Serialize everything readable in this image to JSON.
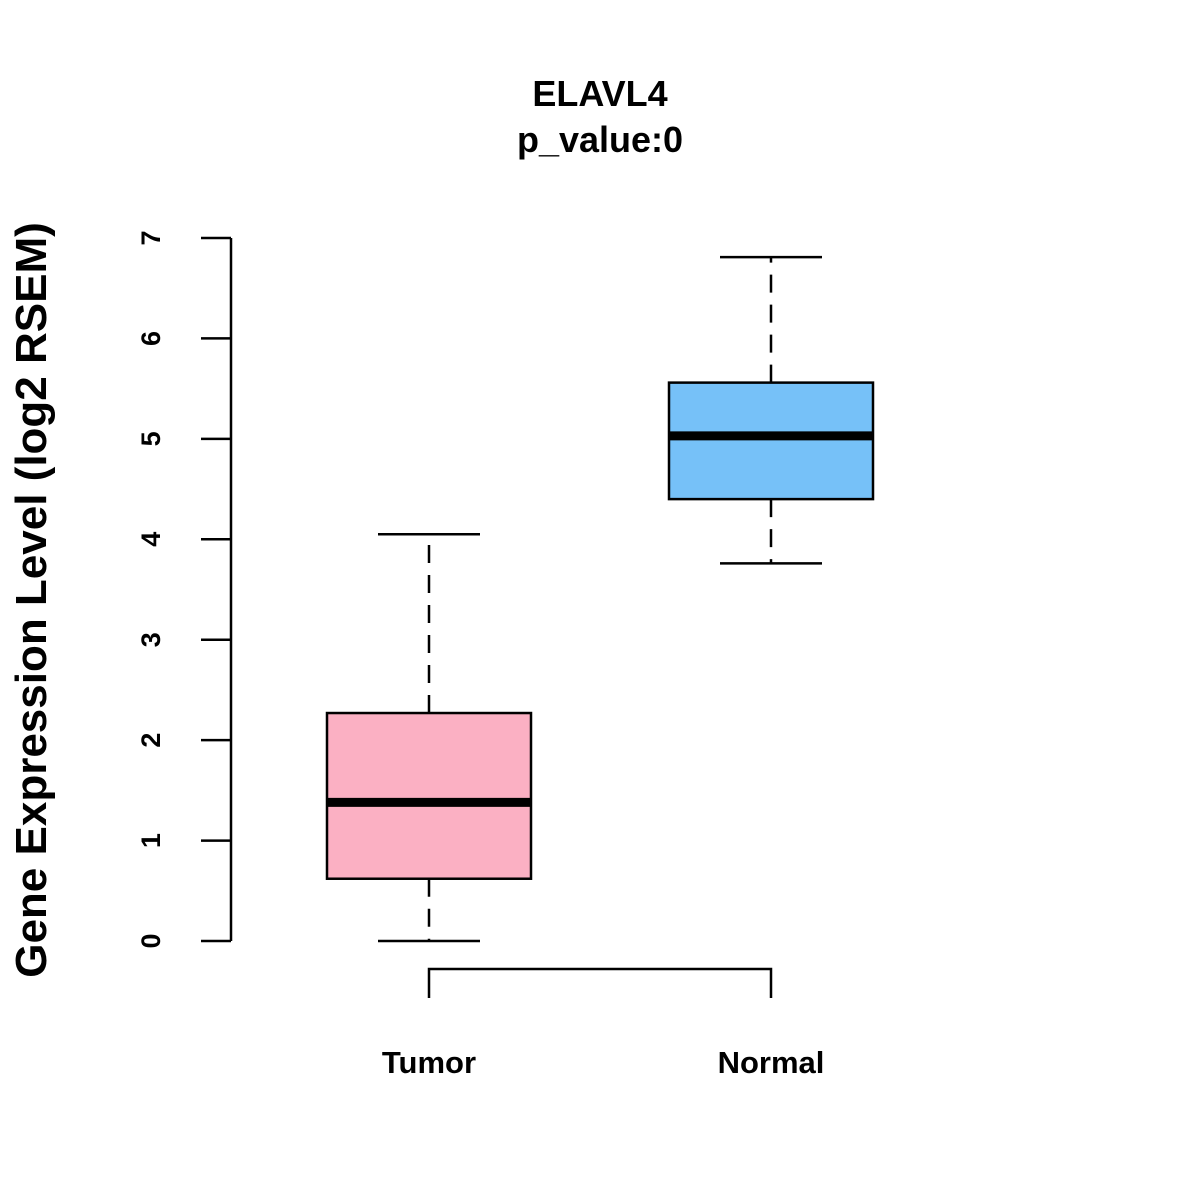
{
  "chart_data": {
    "type": "boxplot",
    "title": "ELAVL4",
    "subtitle": "p_value:0",
    "xlabel": "",
    "ylabel": "Gene Expression Level (log2 RSEM)",
    "ylim": [
      0,
      7
    ],
    "yticks": [
      0,
      1,
      2,
      3,
      4,
      5,
      6,
      7
    ],
    "grid": false,
    "categories": [
      "Tumor",
      "Normal"
    ],
    "boxes": [
      {
        "name": "Tumor",
        "min": 0.0,
        "q1": 0.62,
        "median": 1.38,
        "q3": 2.27,
        "max": 4.05,
        "color": "#FBB0C3"
      },
      {
        "name": "Normal",
        "min": 3.76,
        "q1": 4.4,
        "median": 5.03,
        "q3": 5.56,
        "max": 6.81,
        "color": "#76C1F8"
      }
    ],
    "comparison_bracket": [
      "Tumor",
      "Normal"
    ]
  }
}
